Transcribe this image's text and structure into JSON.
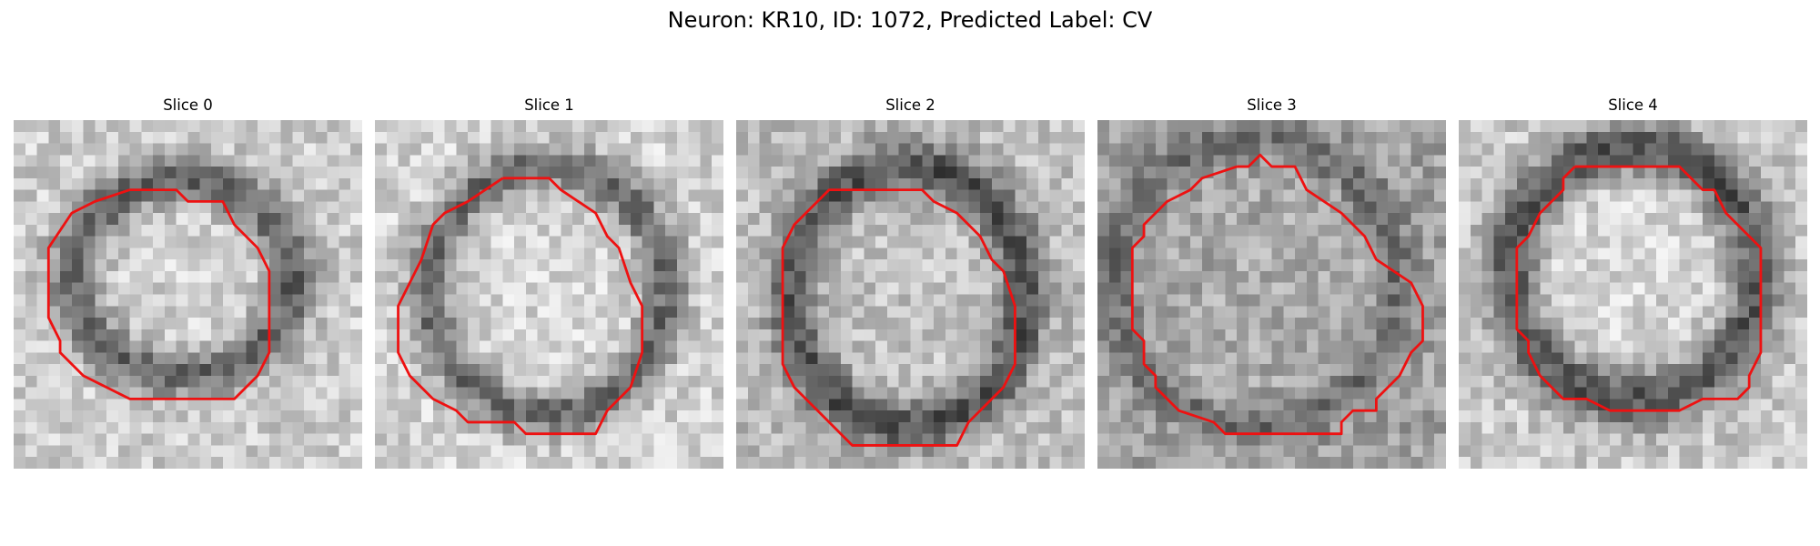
{
  "figure": {
    "title": "Neuron: KR10, ID: 1072, Predicted Label: CV",
    "outline_color": "#ee1111"
  },
  "panels": [
    {
      "title": "Slice 0"
    },
    {
      "title": "Slice 1"
    },
    {
      "title": "Slice 2"
    },
    {
      "title": "Slice 3"
    },
    {
      "title": "Slice 4"
    }
  ]
}
